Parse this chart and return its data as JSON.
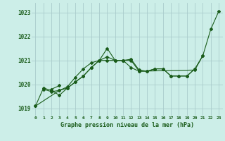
{
  "title": "Graphe pression niveau de la mer (hPa)",
  "background_color": "#cceee8",
  "grid_color": "#aacccc",
  "line_color": "#1a5c1a",
  "xlim": [
    -0.5,
    23.5
  ],
  "ylim": [
    1018.7,
    1023.4
  ],
  "yticks": [
    1019,
    1020,
    1021,
    1022,
    1023
  ],
  "xtick_labels": [
    "0",
    "1",
    "2",
    "3",
    "4",
    "5",
    "6",
    "7",
    "8",
    "9",
    "10",
    "11",
    "12",
    "13",
    "14",
    "15",
    "16",
    "17",
    "18",
    "19",
    "20",
    "21",
    "22",
    "23"
  ],
  "series": [
    {
      "x": [
        0,
        1,
        2,
        3,
        4,
        5,
        6,
        7,
        8,
        9,
        10,
        11,
        12,
        13,
        20,
        21,
        22,
        23
      ],
      "y": [
        1019.1,
        1019.85,
        1019.75,
        1019.55,
        1019.85,
        1020.1,
        1020.35,
        1020.7,
        1021.0,
        1021.0,
        1021.0,
        1021.0,
        1020.7,
        1020.55,
        1020.6,
        1021.2,
        1022.3,
        1023.05
      ]
    },
    {
      "x": [
        0,
        3,
        4,
        5,
        6,
        7,
        8,
        9,
        10,
        11,
        12,
        13,
        14,
        15,
        16,
        17,
        18,
        19,
        20
      ],
      "y": [
        1019.1,
        1019.75,
        1019.9,
        1020.3,
        1020.65,
        1020.9,
        1021.0,
        1021.15,
        1021.0,
        1021.0,
        1021.0,
        1020.55,
        1020.55,
        1020.65,
        1020.65,
        1020.35,
        1020.35,
        1020.35,
        1020.65
      ]
    },
    {
      "x": [
        1,
        2,
        3,
        4,
        5,
        6,
        7,
        8,
        9,
        10,
        11,
        12,
        13,
        14,
        15,
        16,
        17,
        18,
        19,
        20,
        21
      ],
      "y": [
        1019.8,
        1019.7,
        1019.75,
        1019.85,
        1020.1,
        1020.35,
        1020.7,
        1021.0,
        1021.5,
        1021.0,
        1021.0,
        1021.05,
        1020.6,
        1020.55,
        1020.65,
        1020.65,
        1020.35,
        1020.35,
        1020.35,
        1020.65,
        1021.2
      ]
    },
    {
      "x": [
        2,
        3
      ],
      "y": [
        1019.8,
        1019.95
      ]
    }
  ]
}
